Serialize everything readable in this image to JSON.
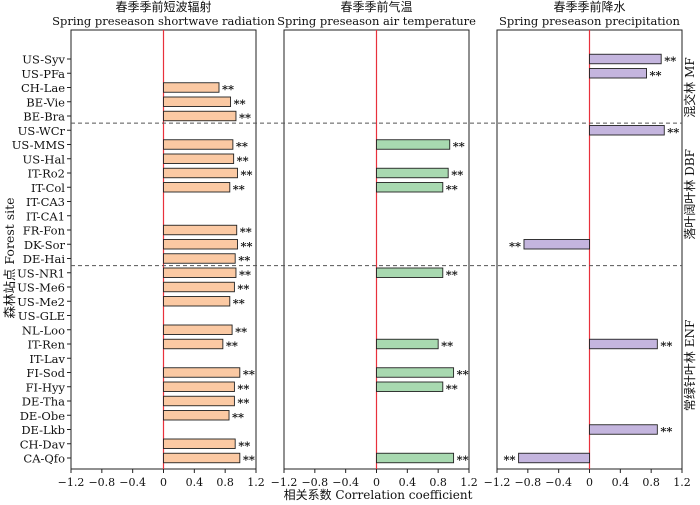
{
  "chart_data": {
    "type": "bar",
    "orientation": "horizontal",
    "y_axis_label": "森林站点 Forest site",
    "x_axis_label": "相关系数 Correlation coefficient",
    "xlim": [
      -1.2,
      1.2
    ],
    "x_ticks": [
      "−1.2",
      "−0.8",
      "−0.4",
      "0",
      "0.4",
      "0.8",
      "1.2"
    ],
    "significance_label": "**",
    "sites": [
      "US-Syv",
      "US-PFa",
      "CH-Lae",
      "BE-Vie",
      "BE-Bra",
      "US-WCr",
      "US-MMS",
      "US-Hal",
      "IT-Ro2",
      "IT-Col",
      "IT-CA3",
      "IT-CA1",
      "FR-Fon",
      "DK-Sor",
      "DE-Hai",
      "US-NR1",
      "US-Me6",
      "US-Me2",
      "US-GLE",
      "NL-Loo",
      "IT-Ren",
      "IT-Lav",
      "FI-Sod",
      "FI-Hyy",
      "DE-Tha",
      "DE-Obe",
      "DE-Lkb",
      "CH-Dav",
      "CA-Qfo"
    ],
    "groups": [
      {
        "label": "混交林 MF",
        "sites": [
          "US-Syv",
          "US-PFa",
          "CH-Lae",
          "BE-Vie",
          "BE-Bra"
        ]
      },
      {
        "label": "落叶阔叶林 DBF",
        "sites": [
          "US-WCr",
          "US-MMS",
          "US-Hal",
          "IT-Ro2",
          "IT-Col",
          "IT-CA3",
          "IT-CA1",
          "FR-Fon",
          "DK-Sor",
          "DE-Hai"
        ]
      },
      {
        "label": "常绿针叶林 ENF",
        "sites": [
          "US-NR1",
          "US-Me6",
          "US-Me2",
          "US-GLE",
          "NL-Loo",
          "IT-Ren",
          "IT-Lav",
          "FI-Sod",
          "FI-Hyy",
          "DE-Tha",
          "DE-Obe",
          "DE-Lkb",
          "CH-Dav",
          "CA-Qfo"
        ]
      }
    ],
    "panels": [
      {
        "title_cn": "春季季前短波辐射",
        "title_en": "Spring preseason shortwave radiation",
        "color": "#fbc9a3",
        "values": [
          null,
          null,
          0.72,
          0.87,
          0.94,
          null,
          0.9,
          0.91,
          0.96,
          0.86,
          null,
          null,
          0.95,
          0.96,
          0.93,
          0.94,
          0.92,
          0.86,
          null,
          0.89,
          0.77,
          null,
          0.99,
          0.92,
          0.92,
          0.85,
          null,
          0.93,
          0.99
        ]
      },
      {
        "title_cn": "春季季前气温",
        "title_en": "Spring preseason air temperature",
        "color": "#a8d9b0",
        "values": [
          null,
          null,
          null,
          null,
          null,
          null,
          0.95,
          null,
          0.93,
          0.86,
          null,
          null,
          null,
          null,
          null,
          0.86,
          null,
          null,
          null,
          null,
          0.8,
          null,
          1.0,
          0.86,
          null,
          null,
          null,
          null,
          1.0
        ]
      },
      {
        "title_cn": "春季季前降水",
        "title_en": "Spring preseason precipitation",
        "color": "#c4b5de",
        "values": [
          0.93,
          0.74,
          null,
          null,
          null,
          0.97,
          null,
          null,
          null,
          null,
          null,
          null,
          null,
          -0.85,
          null,
          null,
          null,
          null,
          null,
          null,
          0.88,
          null,
          null,
          null,
          null,
          null,
          0.88,
          null,
          -0.92
        ]
      }
    ]
  }
}
